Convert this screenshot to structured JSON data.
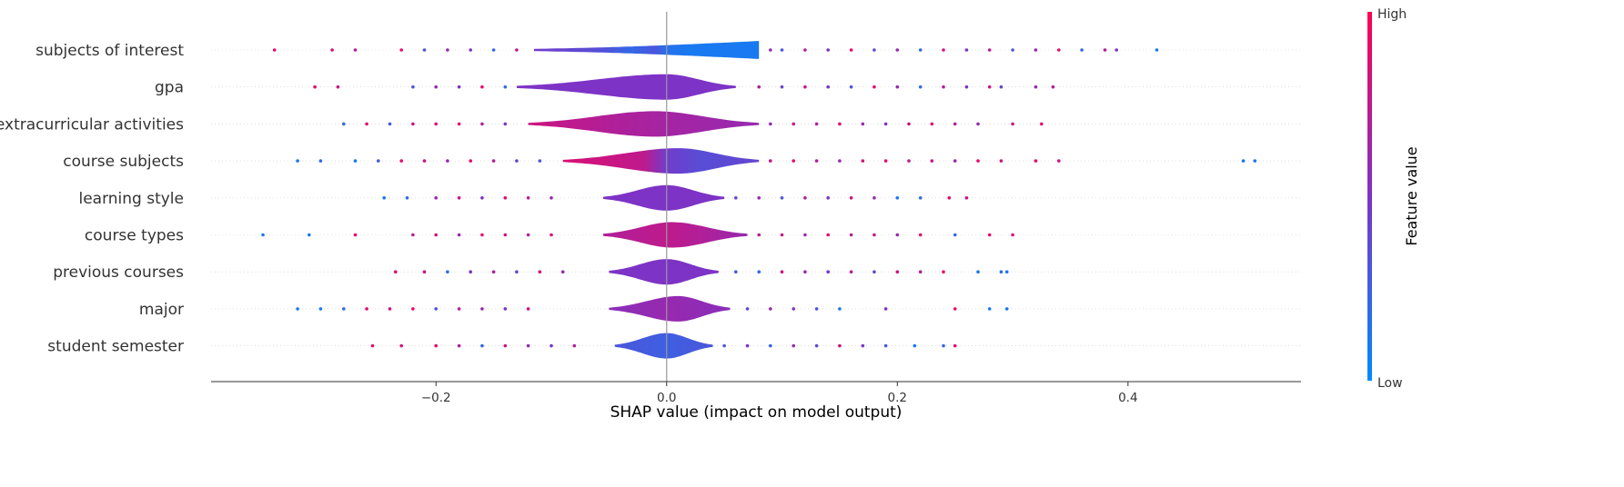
{
  "chart_data": {
    "type": "scatter",
    "subtype": "shap-layered-violin",
    "title": "",
    "xlabel": "SHAP value (impact on model output)",
    "ylabel": "",
    "xlim": [
      -0.395,
      0.55
    ],
    "x_ticks": [
      -0.2,
      0.0,
      0.2,
      0.4
    ],
    "x_tick_labels": [
      "−0.2",
      "0.0",
      "0.2",
      "0.4"
    ],
    "zero_line": 0.0,
    "grid": false,
    "colorbar": {
      "title": "Feature value",
      "high_label": "High",
      "low_label": "Low",
      "low_color": "#008bfb",
      "mid_color": "#7d33c6",
      "high_color": "#ff0052"
    },
    "features": [
      {
        "name": "subjects of interest",
        "x_min": -0.34,
        "x_max": 0.425,
        "violin_extent": [
          -0.115,
          0.08
        ],
        "violin_peak": 0.2,
        "color_segments": [
          [
            -0.115,
            0.45
          ],
          [
            -0.06,
            0.35
          ],
          [
            -0.03,
            0.2
          ],
          [
            -0.01,
            0.3
          ],
          [
            0.0,
            0.15
          ],
          [
            0.02,
            0.1
          ],
          [
            0.08,
            0.1
          ]
        ],
        "points_sample": [
          [
            -0.34,
            0.9
          ],
          [
            -0.29,
            0.8
          ],
          [
            -0.27,
            0.7
          ],
          [
            -0.23,
            0.9
          ],
          [
            -0.21,
            0.3
          ],
          [
            -0.19,
            0.6
          ],
          [
            -0.17,
            0.5
          ],
          [
            -0.15,
            0.2
          ],
          [
            -0.13,
            0.8
          ],
          [
            0.09,
            0.6
          ],
          [
            0.1,
            0.3
          ],
          [
            0.12,
            0.7
          ],
          [
            0.14,
            0.5
          ],
          [
            0.16,
            0.9
          ],
          [
            0.18,
            0.4
          ],
          [
            0.2,
            0.6
          ],
          [
            0.22,
            0.2
          ],
          [
            0.24,
            0.8
          ],
          [
            0.26,
            0.5
          ],
          [
            0.28,
            0.7
          ],
          [
            0.3,
            0.3
          ],
          [
            0.32,
            0.6
          ],
          [
            0.34,
            0.9
          ],
          [
            0.36,
            0.2
          ],
          [
            0.38,
            0.7
          ],
          [
            0.39,
            0.5
          ],
          [
            0.425,
            0.1
          ]
        ]
      },
      {
        "name": "gpa",
        "x_min": -0.305,
        "x_max": 0.335,
        "violin_extent": [
          -0.13,
          0.06
        ],
        "violin_peak": 0.0,
        "color_segments": [
          [
            -0.13,
            0.5
          ],
          [
            0.06,
            0.5
          ]
        ],
        "points_sample": [
          [
            -0.305,
            0.9
          ],
          [
            -0.285,
            0.8
          ],
          [
            -0.22,
            0.3
          ],
          [
            -0.2,
            0.6
          ],
          [
            -0.18,
            0.5
          ],
          [
            -0.16,
            0.9
          ],
          [
            -0.14,
            0.2
          ],
          [
            0.08,
            0.7
          ],
          [
            0.1,
            0.4
          ],
          [
            0.12,
            0.8
          ],
          [
            0.14,
            0.5
          ],
          [
            0.16,
            0.3
          ],
          [
            0.18,
            0.9
          ],
          [
            0.2,
            0.6
          ],
          [
            0.22,
            0.2
          ],
          [
            0.24,
            0.7
          ],
          [
            0.26,
            0.5
          ],
          [
            0.28,
            0.8
          ],
          [
            0.29,
            0.4
          ],
          [
            0.32,
            0.6
          ],
          [
            0.335,
            0.7
          ]
        ]
      },
      {
        "name": "extracurricular activities",
        "x_min": -0.28,
        "x_max": 0.325,
        "violin_extent": [
          -0.12,
          0.08
        ],
        "violin_peak": -0.01,
        "color_segments": [
          [
            -0.12,
            0.8
          ],
          [
            -0.05,
            0.7
          ],
          [
            0.0,
            0.65
          ],
          [
            0.08,
            0.6
          ]
        ],
        "points_sample": [
          [
            -0.28,
            0.2
          ],
          [
            -0.26,
            0.9
          ],
          [
            -0.24,
            0.3
          ],
          [
            -0.22,
            0.8
          ],
          [
            -0.2,
            0.85
          ],
          [
            -0.18,
            0.9
          ],
          [
            -0.16,
            0.7
          ],
          [
            -0.14,
            0.5
          ],
          [
            0.09,
            0.6
          ],
          [
            0.11,
            0.8
          ],
          [
            0.13,
            0.7
          ],
          [
            0.15,
            0.9
          ],
          [
            0.17,
            0.6
          ],
          [
            0.19,
            0.5
          ],
          [
            0.21,
            0.8
          ],
          [
            0.23,
            0.9
          ],
          [
            0.25,
            0.7
          ],
          [
            0.27,
            0.6
          ],
          [
            0.3,
            0.8
          ],
          [
            0.325,
            0.9
          ]
        ]
      },
      {
        "name": "course subjects",
        "x_min": -0.32,
        "x_max": 0.51,
        "violin_extent": [
          -0.09,
          0.08
        ],
        "violin_peak": 0.01,
        "color_segments": [
          [
            -0.09,
            0.85
          ],
          [
            -0.02,
            0.75
          ],
          [
            0.0,
            0.45
          ],
          [
            0.03,
            0.35
          ],
          [
            0.08,
            0.4
          ]
        ],
        "points_sample": [
          [
            -0.32,
            0.1
          ],
          [
            -0.3,
            0.2
          ],
          [
            -0.27,
            0.1
          ],
          [
            -0.25,
            0.3
          ],
          [
            -0.23,
            0.9
          ],
          [
            -0.21,
            0.8
          ],
          [
            -0.19,
            0.6
          ],
          [
            -0.17,
            0.9
          ],
          [
            -0.15,
            0.7
          ],
          [
            -0.13,
            0.4
          ],
          [
            -0.11,
            0.3
          ],
          [
            0.09,
            0.8
          ],
          [
            0.11,
            0.9
          ],
          [
            0.13,
            0.7
          ],
          [
            0.15,
            0.6
          ],
          [
            0.17,
            0.85
          ],
          [
            0.19,
            0.9
          ],
          [
            0.21,
            0.7
          ],
          [
            0.23,
            0.8
          ],
          [
            0.25,
            0.6
          ],
          [
            0.27,
            0.9
          ],
          [
            0.29,
            0.8
          ],
          [
            0.32,
            0.9
          ],
          [
            0.34,
            0.8
          ],
          [
            0.5,
            0.1
          ],
          [
            0.51,
            0.1
          ]
        ]
      },
      {
        "name": "learning style",
        "x_min": -0.245,
        "x_max": 0.26,
        "violin_extent": [
          -0.055,
          0.05
        ],
        "violin_peak": 0.0,
        "color_segments": [
          [
            -0.055,
            0.5
          ],
          [
            0.05,
            0.5
          ]
        ],
        "points_sample": [
          [
            -0.245,
            0.1
          ],
          [
            -0.225,
            0.2
          ],
          [
            -0.2,
            0.6
          ],
          [
            -0.18,
            0.8
          ],
          [
            -0.16,
            0.5
          ],
          [
            -0.14,
            0.9
          ],
          [
            -0.12,
            0.7
          ],
          [
            -0.1,
            0.6
          ],
          [
            0.06,
            0.4
          ],
          [
            0.08,
            0.6
          ],
          [
            0.1,
            0.3
          ],
          [
            0.12,
            0.7
          ],
          [
            0.14,
            0.5
          ],
          [
            0.16,
            0.8
          ],
          [
            0.18,
            0.6
          ],
          [
            0.2,
            0.1
          ],
          [
            0.22,
            0.2
          ],
          [
            0.245,
            0.9
          ],
          [
            0.26,
            0.8
          ]
        ]
      },
      {
        "name": "course types",
        "x_min": -0.35,
        "x_max": 0.3,
        "violin_extent": [
          -0.055,
          0.07
        ],
        "violin_peak": 0.005,
        "color_segments": [
          [
            -0.055,
            0.7
          ],
          [
            0.0,
            0.75
          ],
          [
            0.03,
            0.7
          ],
          [
            0.07,
            0.6
          ]
        ],
        "points_sample": [
          [
            -0.35,
            0.1
          ],
          [
            -0.31,
            0.1
          ],
          [
            -0.27,
            0.9
          ],
          [
            -0.22,
            0.7
          ],
          [
            -0.2,
            0.8
          ],
          [
            -0.18,
            0.6
          ],
          [
            -0.16,
            0.9
          ],
          [
            -0.14,
            0.8
          ],
          [
            -0.12,
            0.7
          ],
          [
            -0.1,
            0.85
          ],
          [
            0.08,
            0.7
          ],
          [
            0.1,
            0.8
          ],
          [
            0.12,
            0.6
          ],
          [
            0.14,
            0.9
          ],
          [
            0.16,
            0.7
          ],
          [
            0.18,
            0.8
          ],
          [
            0.2,
            0.6
          ],
          [
            0.22,
            0.9
          ],
          [
            0.25,
            0.2
          ],
          [
            0.28,
            0.9
          ],
          [
            0.3,
            0.85
          ]
        ]
      },
      {
        "name": "previous courses",
        "x_min": -0.235,
        "x_max": 0.295,
        "violin_extent": [
          -0.05,
          0.045
        ],
        "violin_peak": 0.0,
        "color_segments": [
          [
            -0.05,
            0.5
          ],
          [
            0.045,
            0.5
          ]
        ],
        "points_sample": [
          [
            -0.235,
            0.9
          ],
          [
            -0.21,
            0.8
          ],
          [
            -0.19,
            0.2
          ],
          [
            -0.17,
            0.5
          ],
          [
            -0.15,
            0.7
          ],
          [
            -0.13,
            0.4
          ],
          [
            -0.11,
            0.8
          ],
          [
            -0.09,
            0.6
          ],
          [
            0.06,
            0.3
          ],
          [
            0.08,
            0.2
          ],
          [
            0.1,
            0.8
          ],
          [
            0.12,
            0.6
          ],
          [
            0.14,
            0.5
          ],
          [
            0.16,
            0.7
          ],
          [
            0.18,
            0.4
          ],
          [
            0.2,
            0.8
          ],
          [
            0.22,
            0.7
          ],
          [
            0.24,
            0.9
          ],
          [
            0.27,
            0.1
          ],
          [
            0.29,
            0.2
          ],
          [
            0.295,
            0.1
          ]
        ]
      },
      {
        "name": "major",
        "x_min": -0.32,
        "x_max": 0.295,
        "violin_extent": [
          -0.05,
          0.055
        ],
        "violin_peak": 0.01,
        "color_segments": [
          [
            -0.05,
            0.55
          ],
          [
            0.0,
            0.6
          ],
          [
            0.055,
            0.55
          ]
        ],
        "points_sample": [
          [
            -0.32,
            0.1
          ],
          [
            -0.3,
            0.1
          ],
          [
            -0.28,
            0.2
          ],
          [
            -0.26,
            0.9
          ],
          [
            -0.24,
            0.8
          ],
          [
            -0.22,
            0.9
          ],
          [
            -0.2,
            0.3
          ],
          [
            -0.18,
            0.7
          ],
          [
            -0.16,
            0.6
          ],
          [
            -0.14,
            0.5
          ],
          [
            -0.12,
            0.8
          ],
          [
            0.07,
            0.4
          ],
          [
            0.09,
            0.6
          ],
          [
            0.11,
            0.5
          ],
          [
            0.13,
            0.3
          ],
          [
            0.15,
            0.1
          ],
          [
            0.19,
            0.5
          ],
          [
            0.25,
            0.9
          ],
          [
            0.28,
            0.1
          ],
          [
            0.295,
            0.1
          ]
        ]
      },
      {
        "name": "student semester",
        "x_min": -0.255,
        "x_max": 0.25,
        "violin_extent": [
          -0.045,
          0.04
        ],
        "violin_peak": 0.0,
        "color_segments": [
          [
            -0.045,
            0.3
          ],
          [
            0.0,
            0.25
          ],
          [
            0.04,
            0.3
          ]
        ],
        "points_sample": [
          [
            -0.255,
            0.9
          ],
          [
            -0.23,
            0.8
          ],
          [
            -0.2,
            0.9
          ],
          [
            -0.18,
            0.7
          ],
          [
            -0.16,
            0.2
          ],
          [
            -0.14,
            0.8
          ],
          [
            -0.12,
            0.6
          ],
          [
            -0.1,
            0.5
          ],
          [
            -0.08,
            0.7
          ],
          [
            0.05,
            0.3
          ],
          [
            0.07,
            0.5
          ],
          [
            0.09,
            0.2
          ],
          [
            0.11,
            0.6
          ],
          [
            0.13,
            0.4
          ],
          [
            0.15,
            0.8
          ],
          [
            0.17,
            0.5
          ],
          [
            0.19,
            0.3
          ],
          [
            0.215,
            0.1
          ],
          [
            0.24,
            0.2
          ],
          [
            0.25,
            0.9
          ]
        ]
      }
    ]
  }
}
